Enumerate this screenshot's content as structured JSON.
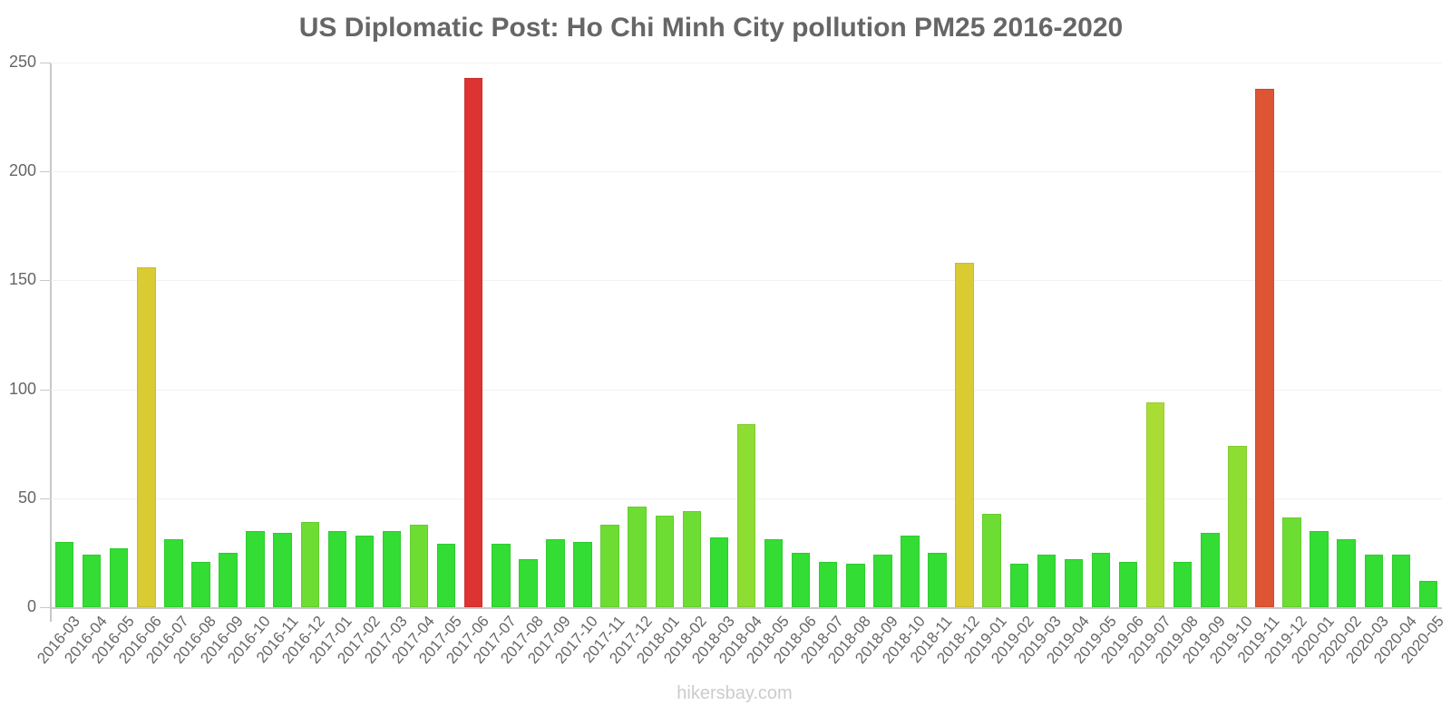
{
  "chart_data": {
    "type": "bar",
    "title": "US Diplomatic Post: Ho Chi Minh City pollution PM25 2016-2020",
    "xlabel": "",
    "ylabel": "",
    "ylim": [
      0,
      250
    ],
    "yticks": [
      0,
      50,
      100,
      150,
      200,
      250
    ],
    "grid": true,
    "legend": null,
    "watermark": "hikersbay.com",
    "categories": [
      "2016-03",
      "2016-04",
      "2016-05",
      "2016-06",
      "2016-07",
      "2016-08",
      "2016-09",
      "2016-10",
      "2016-11",
      "2016-12",
      "2017-01",
      "2017-02",
      "2017-03",
      "2017-04",
      "2017-05",
      "2017-06",
      "2017-07",
      "2017-08",
      "2017-09",
      "2017-10",
      "2017-11",
      "2017-12",
      "2018-01",
      "2018-02",
      "2018-03",
      "2018-04",
      "2018-05",
      "2018-06",
      "2018-07",
      "2018-08",
      "2018-09",
      "2018-10",
      "2018-11",
      "2018-12",
      "2019-01",
      "2019-02",
      "2019-03",
      "2019-04",
      "2019-05",
      "2019-06",
      "2019-07",
      "2019-08",
      "2019-09",
      "2019-10",
      "2019-11",
      "2019-12",
      "2020-01",
      "2020-02",
      "2020-03",
      "2020-04",
      "2020-05"
    ],
    "values": [
      30,
      24,
      27,
      156,
      31,
      21,
      25,
      35,
      34,
      39,
      35,
      33,
      35,
      38,
      29,
      243,
      29,
      22,
      31,
      30,
      38,
      46,
      42,
      44,
      32,
      84,
      31,
      25,
      21,
      20,
      24,
      33,
      25,
      158,
      43,
      20,
      24,
      22,
      25,
      21,
      94,
      21,
      34,
      74,
      238,
      41,
      35,
      31,
      24,
      24,
      12
    ],
    "colors": [
      "#33dd33",
      "#33dd33",
      "#33dd33",
      "#dbcb33",
      "#33dd33",
      "#33dd33",
      "#33dd33",
      "#33dd33",
      "#33dd33",
      "#6ddd33",
      "#33dd33",
      "#33dd33",
      "#33dd33",
      "#6ddd33",
      "#33dd33",
      "#dd3333",
      "#33dd33",
      "#33dd33",
      "#33dd33",
      "#33dd33",
      "#6ddd33",
      "#6ddd33",
      "#6ddd33",
      "#6ddd33",
      "#33dd33",
      "#8ddd33",
      "#33dd33",
      "#33dd33",
      "#33dd33",
      "#33dd33",
      "#33dd33",
      "#33dd33",
      "#33dd33",
      "#dbcb33",
      "#6ddd33",
      "#33dd33",
      "#33dd33",
      "#33dd33",
      "#33dd33",
      "#33dd33",
      "#aadd33",
      "#33dd33",
      "#33dd33",
      "#8ddd33",
      "#dd5533",
      "#6ddd33",
      "#33dd33",
      "#33dd33",
      "#33dd33",
      "#33dd33",
      "#33dd33"
    ]
  }
}
